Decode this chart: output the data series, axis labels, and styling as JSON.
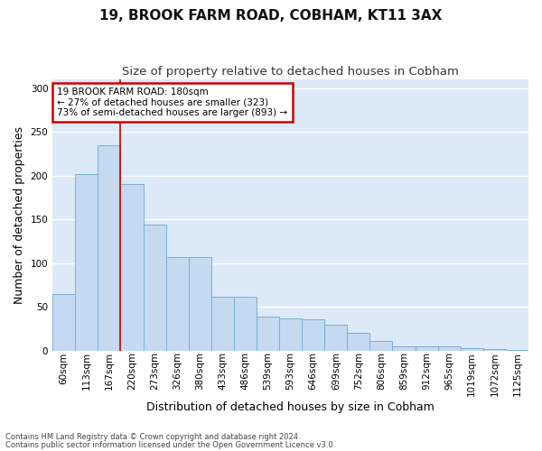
{
  "title1": "19, BROOK FARM ROAD, COBHAM, KT11 3AX",
  "title2": "Size of property relative to detached houses in Cobham",
  "xlabel": "Distribution of detached houses by size in Cobham",
  "ylabel": "Number of detached properties",
  "categories": [
    "60sqm",
    "113sqm",
    "167sqm",
    "220sqm",
    "273sqm",
    "326sqm",
    "380sqm",
    "433sqm",
    "486sqm",
    "539sqm",
    "593sqm",
    "646sqm",
    "699sqm",
    "752sqm",
    "806sqm",
    "859sqm",
    "912sqm",
    "965sqm",
    "1019sqm",
    "1072sqm",
    "1125sqm"
  ],
  "values": [
    65,
    202,
    235,
    191,
    144,
    107,
    107,
    62,
    62,
    39,
    37,
    36,
    30,
    20,
    11,
    5,
    5,
    5,
    3,
    2,
    1
  ],
  "bar_color": "#c5d9f1",
  "bar_edge_color": "#7bafd4",
  "background_color": "#dce9f7",
  "grid_color": "#ffffff",
  "annotation_text": "19 BROOK FARM ROAD: 180sqm\n← 27% of detached houses are smaller (323)\n73% of semi-detached houses are larger (893) →",
  "annotation_box_color": "#ffffff",
  "annotation_box_edge": "#cc0000",
  "vline_color": "#cc0000",
  "vline_x": 2.5,
  "footer1": "Contains HM Land Registry data © Crown copyright and database right 2024.",
  "footer2": "Contains public sector information licensed under the Open Government Licence v3.0.",
  "ylim": [
    0,
    310
  ],
  "title_fontsize": 11,
  "subtitle_fontsize": 9.5,
  "tick_fontsize": 7.5,
  "ylabel_fontsize": 9,
  "xlabel_fontsize": 9,
  "footer_fontsize": 6,
  "annot_fontsize": 7.5
}
